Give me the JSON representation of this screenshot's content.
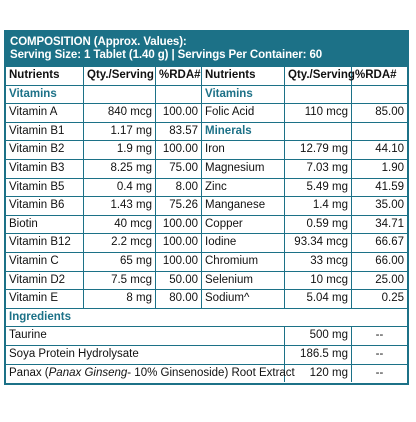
{
  "header": {
    "title": "COMPOSITION (Approx. Values):",
    "serving": "Serving Size: 1 Tablet (1.40 g) | Servings Per Container: 60"
  },
  "columns": [
    "Nutrients",
    "Qty./Serving",
    "%RDA#",
    "Nutrients",
    "Qty./Serving",
    "%RDA#"
  ],
  "sections": {
    "vitamins": "Vitamins",
    "minerals": "Minerals",
    "ingredients": "Ingredients"
  },
  "rows": [
    {
      "n1": "Vitamin A",
      "q1": "840 mcg",
      "r1": "100.00",
      "n2": "Folic Acid",
      "q2": "110 mcg",
      "r2": "85.00"
    },
    {
      "n1": "Vitamin B1",
      "q1": "1.17 mg",
      "r1": "83.57",
      "n2": "",
      "q2": "",
      "r2": ""
    },
    {
      "n1": "Vitamin B2",
      "q1": "1.9 mg",
      "r1": "100.00",
      "n2": "Iron",
      "q2": "12.79 mg",
      "r2": "44.10"
    },
    {
      "n1": "Vitamin B3",
      "q1": "8.25 mg",
      "r1": "75.00",
      "n2": "Magnesium",
      "q2": "7.03 mg",
      "r2": "1.90"
    },
    {
      "n1": "Vitamin B5",
      "q1": "0.4 mg",
      "r1": "8.00",
      "n2": "Zinc",
      "q2": "5.49 mg",
      "r2": "41.59"
    },
    {
      "n1": "Vitamin B6",
      "q1": "1.43 mg",
      "r1": "75.26",
      "n2": "Manganese",
      "q2": "1.4 mg",
      "r2": "35.00"
    },
    {
      "n1": "Biotin",
      "q1": "40 mcg",
      "r1": "100.00",
      "n2": "Copper",
      "q2": "0.59 mg",
      "r2": "34.71"
    },
    {
      "n1": "Vitamin B12",
      "q1": "2.2 mcg",
      "r1": "100.00",
      "n2": "Iodine",
      "q2": "93.34 mcg",
      "r2": "66.67"
    },
    {
      "n1": "Vitamin C",
      "q1": "65 mg",
      "r1": "100.00",
      "n2": "Chromium",
      "q2": "33 mcg",
      "r2": "66.00"
    },
    {
      "n1": "Vitamin D2",
      "q1": "7.5 mcg",
      "r1": "50.00",
      "n2": "Selenium",
      "q2": "10 mcg",
      "r2": "25.00"
    },
    {
      "n1": "Vitamin E",
      "q1": "8 mg",
      "r1": "80.00",
      "n2": "Sodium^",
      "q2": "5.04 mg",
      "r2": "0.25"
    }
  ],
  "ingredients": [
    {
      "name": "Taurine",
      "qty": "500 mg",
      "rda": "--"
    },
    {
      "name": "Soya Protein Hydrolysate",
      "qty": "186.5 mg",
      "rda": "--"
    },
    {
      "name_pre": "Panax (",
      "name_italic": "Panax Ginseng",
      "name_post": "- 10% Ginsenoside) Root Extract",
      "qty": "120 mg",
      "rda": "--"
    }
  ]
}
